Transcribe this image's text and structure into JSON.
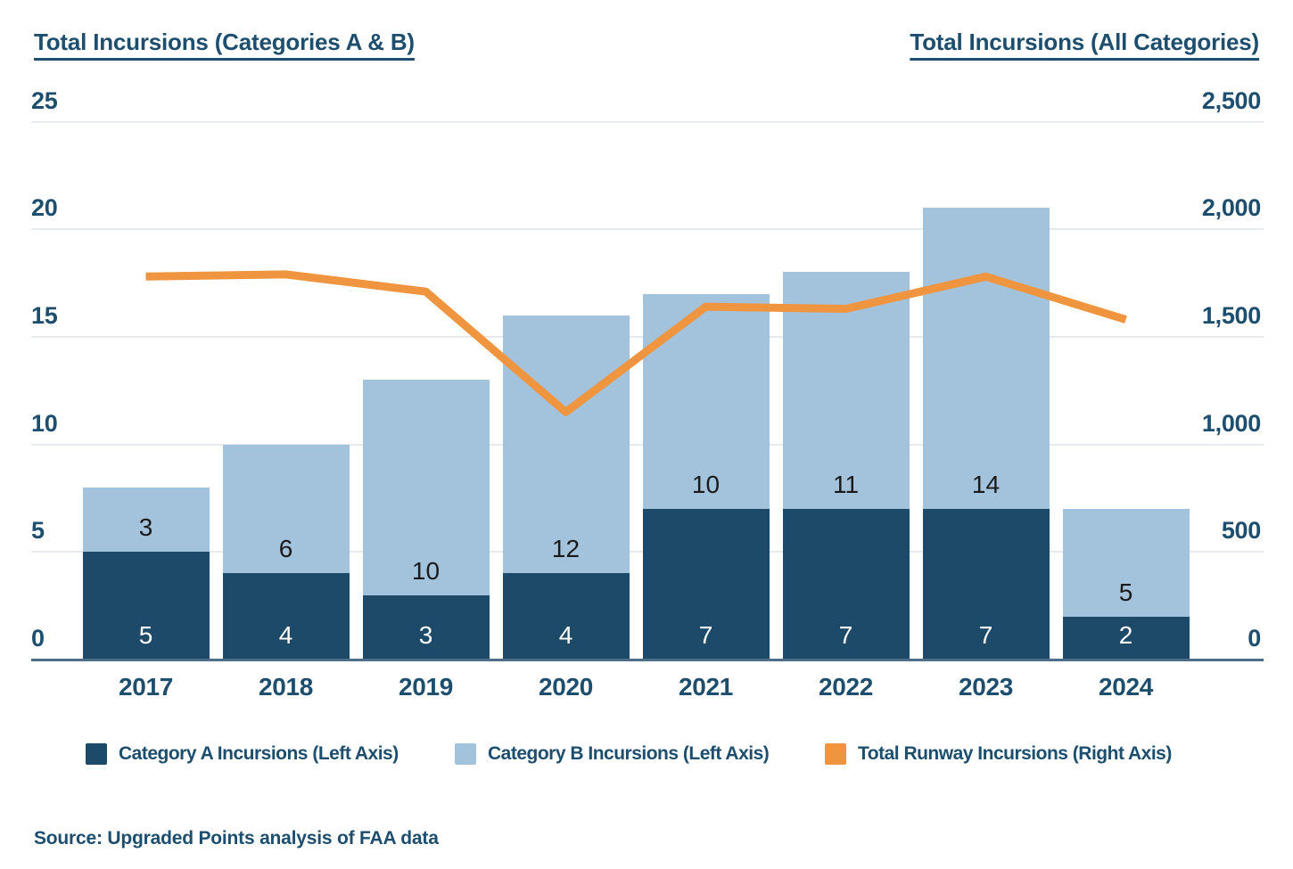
{
  "titles": {
    "left": "Total Incursions (Categories A & B)",
    "right": "Total Incursions (All Categories)"
  },
  "chart_data": {
    "type": "bar",
    "subtype": "stacked-bars-with-line-overlay",
    "categories": [
      "2017",
      "2018",
      "2019",
      "2020",
      "2021",
      "2022",
      "2023",
      "2024"
    ],
    "series": [
      {
        "name": "Category A Incursions (Left Axis)",
        "render": "bar",
        "axis": "left",
        "color": "#1C4A68",
        "values": [
          5,
          4,
          3,
          4,
          7,
          7,
          7,
          2
        ]
      },
      {
        "name": "Category B Incursions (Left Axis)",
        "render": "bar",
        "axis": "left",
        "color": "#A3C2DC",
        "values": [
          3,
          6,
          10,
          12,
          10,
          11,
          14,
          5
        ]
      },
      {
        "name": "Total Runway Incursions (Right Axis)",
        "render": "line",
        "axis": "right",
        "color": "#F0953F",
        "values": [
          1780,
          1790,
          1710,
          1150,
          1640,
          1630,
          1780,
          1580
        ]
      }
    ],
    "stacked": true,
    "grid": true,
    "legend_position": "bottom",
    "left_axis": {
      "title": "Total Incursions (Categories A & B)",
      "min": 0,
      "max": 25,
      "step": 5,
      "ticks": [
        "0",
        "5",
        "10",
        "15",
        "20",
        "25"
      ]
    },
    "right_axis": {
      "title": "Total Incursions (All Categories)",
      "min": 0,
      "max": 2500,
      "step": 500,
      "ticks": [
        "0",
        "500",
        "1,000",
        "1,500",
        "2,000",
        "2,500"
      ]
    },
    "bar_label_color_a": "#FFFFFF",
    "bar_label_color_b": "#1A1A1A"
  },
  "legend": {
    "items": [
      {
        "label": "Category A Incursions (Left Axis)",
        "color": "#1C4A68"
      },
      {
        "label": "Category B Incursions (Left Axis)",
        "color": "#A3C2DC"
      },
      {
        "label": "Total Runway Incursions (Right Axis)",
        "color": "#F0953F"
      }
    ]
  },
  "source": {
    "text": "Source: Upgraded Points analysis of FAA data"
  },
  "colors": {
    "text": "#1D4E6E",
    "gridline": "#E7EBEF",
    "axis_line": "#4E6D88",
    "background": "#FFFFFF"
  }
}
